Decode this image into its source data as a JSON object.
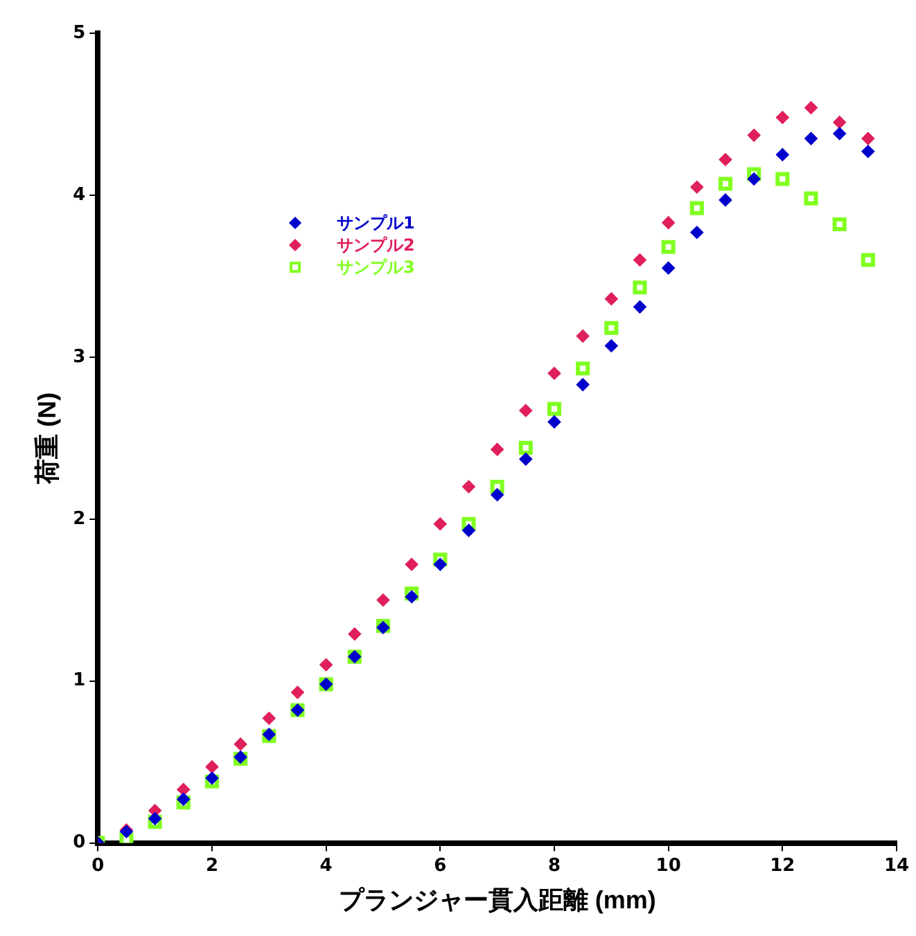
{
  "chart_data": {
    "type": "scatter",
    "xlabel": "プランジャー貫入距離 (mm)",
    "ylabel": "荷重 (N)",
    "xlim": [
      0,
      14
    ],
    "xticks": [
      0,
      2,
      4,
      6,
      8,
      10,
      12,
      14
    ],
    "ylim": [
      0,
      5
    ],
    "yticks": [
      0,
      1,
      2,
      3,
      4,
      5
    ],
    "grid": false,
    "legend": "top left",
    "x": [
      0,
      0.5,
      1,
      1.5,
      2,
      2.5,
      3,
      3.5,
      4,
      4.5,
      5,
      5.5,
      6,
      6.5,
      7,
      7.5,
      8,
      8.5,
      9,
      9.5,
      10,
      10.5,
      11,
      11.5,
      12,
      12.5,
      13,
      13.5
    ],
    "series": [
      {
        "name": "サンプル1",
        "color": "#0000cc",
        "marker": "diamond",
        "values": [
          0,
          0.07,
          0.15,
          0.27,
          0.4,
          0.53,
          0.67,
          0.82,
          0.98,
          1.15,
          1.33,
          1.52,
          1.72,
          1.93,
          2.15,
          2.37,
          2.6,
          2.83,
          3.07,
          3.31,
          3.55,
          3.77,
          3.97,
          4.1,
          4.25,
          4.35,
          4.38,
          4.27
        ]
      },
      {
        "name": "サンプル2",
        "color": "#e0205a",
        "marker": "diamond",
        "values": [
          0,
          0.08,
          0.2,
          0.33,
          0.47,
          0.61,
          0.77,
          0.93,
          1.1,
          1.29,
          1.5,
          1.72,
          1.97,
          2.2,
          2.43,
          2.67,
          2.9,
          3.13,
          3.36,
          3.6,
          3.83,
          4.05,
          4.22,
          4.37,
          4.48,
          4.54,
          4.45,
          4.35
        ]
      },
      {
        "name": "サンプル3",
        "color": "#80ff20",
        "marker": "square",
        "values": [
          0,
          0.02,
          0.13,
          0.25,
          0.38,
          0.52,
          0.66,
          0.82,
          0.98,
          1.15,
          1.34,
          1.54,
          1.75,
          1.97,
          2.2,
          2.44,
          2.68,
          2.93,
          3.18,
          3.43,
          3.68,
          3.92,
          4.07,
          4.13,
          4.1,
          3.98,
          3.82,
          3.6
        ]
      }
    ]
  }
}
